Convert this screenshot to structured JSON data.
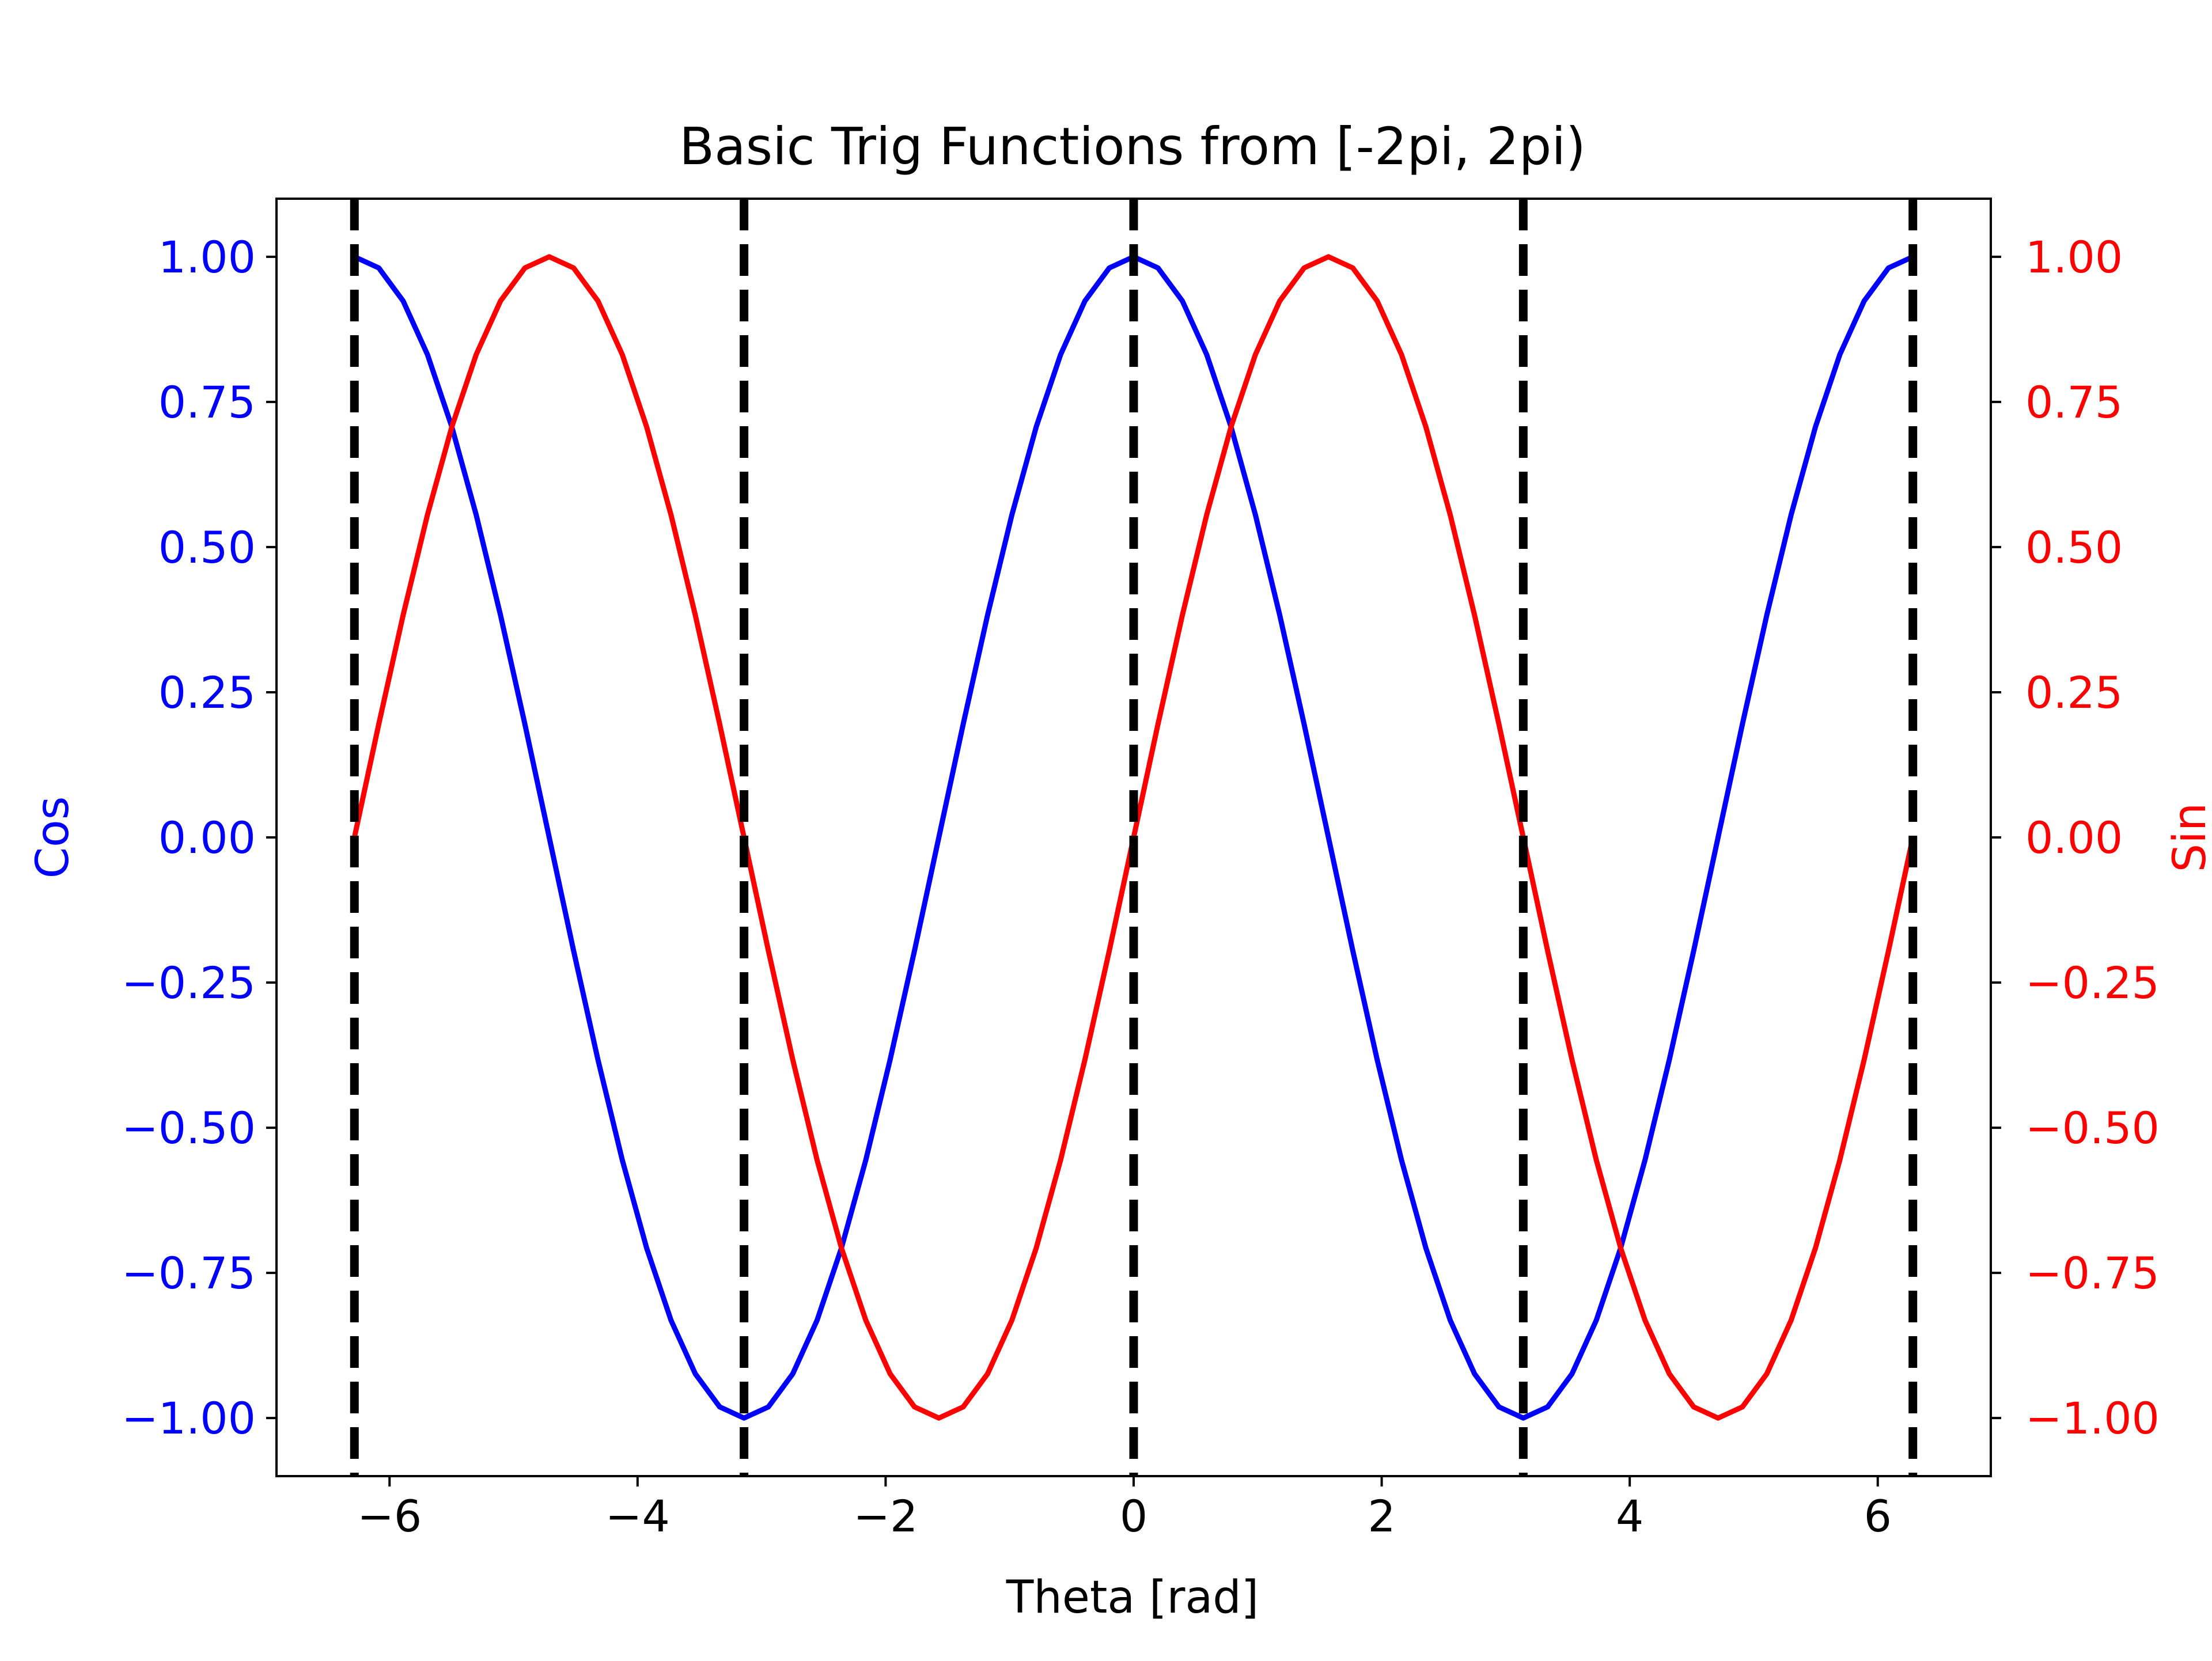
{
  "chart_data": {
    "type": "line",
    "title": "Basic Trig Functions from [-2pi, 2pi)",
    "xlabel": "Theta [rad]",
    "ylabel_left": "Cos",
    "ylabel_right": "Sin",
    "xlim": [
      -6.9115,
      6.9115
    ],
    "ylim_left": [
      -1.1,
      1.1
    ],
    "ylim_right": [
      -1.1,
      1.1
    ],
    "x_ticks": [
      -6,
      -4,
      -2,
      0,
      2,
      4,
      6
    ],
    "x_tick_labels": [
      "−6",
      "−4",
      "−2",
      "0",
      "2",
      "4",
      "6"
    ],
    "y_ticks": [
      1.0,
      0.75,
      0.5,
      0.25,
      0.0,
      -0.25,
      -0.5,
      -0.75,
      -1.0
    ],
    "y_tick_labels_left": [
      "1.00",
      "0.75",
      "0.50",
      "0.25",
      "0.00",
      "−0.25",
      "−0.50",
      "−0.75",
      "−1.00"
    ],
    "y_tick_labels_right": [
      "1.00",
      "0.75",
      "0.50",
      "0.25",
      "0.00",
      "−0.25",
      "−0.50",
      "−0.75",
      "−1.00"
    ],
    "grid": false,
    "left_axis_color": "#0000ff",
    "right_axis_color": "#ff0000",
    "x": [
      -6.2832,
      -6.0868,
      -5.8905,
      -5.6941,
      -5.4978,
      -5.3014,
      -5.1051,
      -4.9087,
      -4.7124,
      -4.516,
      -4.3197,
      -4.1233,
      -3.927,
      -3.7306,
      -3.5343,
      -3.3379,
      -3.1416,
      -2.9452,
      -2.7489,
      -2.5525,
      -2.3562,
      -2.1598,
      -1.9635,
      -1.7671,
      -1.5708,
      -1.3744,
      -1.1781,
      -0.9817,
      -0.7854,
      -0.589,
      -0.3927,
      -0.1963,
      0.0,
      0.1963,
      0.3927,
      0.589,
      0.7854,
      0.9817,
      1.1781,
      1.3744,
      1.5708,
      1.7671,
      1.9635,
      2.1598,
      2.3562,
      2.5525,
      2.7489,
      2.9452,
      3.1416,
      3.3379,
      3.5343,
      3.7306,
      3.927,
      4.1233,
      4.3197,
      4.516,
      4.7124,
      4.9087,
      5.1051,
      5.3014,
      5.4978,
      5.6941,
      5.8905,
      6.0868,
      6.2832
    ],
    "series": [
      {
        "name": "Cos",
        "axis": "left",
        "color": "#0000ff",
        "values": [
          1.0,
          0.9808,
          0.9239,
          0.8315,
          0.7071,
          0.5556,
          0.3827,
          0.1951,
          0.0,
          -0.1951,
          -0.3827,
          -0.5556,
          -0.7071,
          -0.8315,
          -0.9239,
          -0.9808,
          -1.0,
          -0.9808,
          -0.9239,
          -0.8315,
          -0.7071,
          -0.5556,
          -0.3827,
          -0.1951,
          0.0,
          0.1951,
          0.3827,
          0.5556,
          0.7071,
          0.8315,
          0.9239,
          0.9808,
          1.0,
          0.9808,
          0.9239,
          0.8315,
          0.7071,
          0.5556,
          0.3827,
          0.1951,
          0.0,
          -0.1951,
          -0.3827,
          -0.5556,
          -0.7071,
          -0.8315,
          -0.9239,
          -0.9808,
          -1.0,
          -0.9808,
          -0.9239,
          -0.8315,
          -0.7071,
          -0.5556,
          -0.3827,
          -0.1951,
          0.0,
          0.1951,
          0.3827,
          0.5556,
          0.7071,
          0.8315,
          0.9239,
          0.9808,
          1.0
        ]
      },
      {
        "name": "Sin",
        "axis": "right",
        "color": "#ff0000",
        "values": [
          0.0,
          0.1951,
          0.3827,
          0.5556,
          0.7071,
          0.8315,
          0.9239,
          0.9808,
          1.0,
          0.9808,
          0.9239,
          0.8315,
          0.7071,
          0.5556,
          0.3827,
          0.1951,
          0.0,
          -0.1951,
          -0.3827,
          -0.5556,
          -0.7071,
          -0.8315,
          -0.9239,
          -0.9808,
          -1.0,
          -0.9808,
          -0.9239,
          -0.8315,
          -0.7071,
          -0.5556,
          -0.3827,
          -0.1951,
          0.0,
          0.1951,
          0.3827,
          0.5556,
          0.7071,
          0.8315,
          0.9239,
          0.9808,
          1.0,
          0.9808,
          0.9239,
          0.8315,
          0.7071,
          0.5556,
          0.3827,
          0.1951,
          0.0,
          -0.1951,
          -0.3827,
          -0.5556,
          -0.7071,
          -0.8315,
          -0.9239,
          -0.9808,
          -1.0,
          -0.9808,
          -0.9239,
          -0.8315,
          -0.7071,
          -0.5556,
          -0.3827,
          -0.1951,
          0.0
        ]
      }
    ],
    "vertical_lines": [
      {
        "x": -6.2832,
        "style": "dashed",
        "color": "#000000"
      },
      {
        "x": -3.1416,
        "style": "dashed",
        "color": "#000000"
      },
      {
        "x": 0.0,
        "style": "dashed",
        "color": "#000000"
      },
      {
        "x": 3.1416,
        "style": "dashed",
        "color": "#000000"
      },
      {
        "x": 6.2832,
        "style": "dashed",
        "color": "#000000"
      }
    ]
  }
}
